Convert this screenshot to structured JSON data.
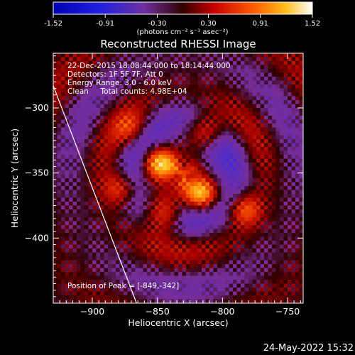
{
  "chart_data": {
    "type": "heatmap",
    "title": "Reconstructed RHESSI Image",
    "colorbar": {
      "ticks": [
        "-1.52",
        "-0.91",
        "-0.30",
        "0.30",
        "0.91",
        "1.52"
      ],
      "min": -1.52,
      "max": 1.52,
      "units_label": "(photons cm⁻² s⁻¹ asec⁻²)"
    },
    "info_lines": [
      "22-Dec-2015 18:08:44.000 to 18:14:44.000",
      "Detectors: 1F 5F 7F, Att 0",
      "Energy Range: 3.0 - 6.0 keV",
      "Clean     Total counts: 4.98E+04"
    ],
    "peak_label": "Position of Peak = [-849,-342]",
    "xlabel": "Heliocentric X (arcsec)",
    "ylabel": "Heliocentric Y (arcsec)",
    "xlim": [
      -930,
      -738
    ],
    "ylim": [
      -450,
      -258
    ],
    "x_ticks": [
      "-900",
      "-850",
      "-800",
      "-750"
    ],
    "x_tick_values": [
      -900,
      -850,
      -800,
      -750
    ],
    "y_ticks": [
      "-300",
      "-350",
      "-400"
    ],
    "y_tick_values": [
      -300,
      -350,
      -400
    ],
    "peak": {
      "x": -849,
      "y": -342
    },
    "limb_line": {
      "x1": -930,
      "y1": -283,
      "x2": -866,
      "y2": -450
    },
    "sources": [
      {
        "x": -849,
        "y": -342,
        "amp": 1.52,
        "sigma": 9
      },
      {
        "x": -817,
        "y": -366,
        "amp": 1.3,
        "sigma": 9
      },
      {
        "x": -845,
        "y": -382,
        "amp": 1.05,
        "sigma": 11
      },
      {
        "x": -812,
        "y": -318,
        "amp": 0.9,
        "sigma": 10
      },
      {
        "x": -783,
        "y": -378,
        "amp": 0.8,
        "sigma": 9
      },
      {
        "x": -878,
        "y": -362,
        "amp": 0.7,
        "sigma": 9
      },
      {
        "x": -870,
        "y": -316,
        "amp": 0.55,
        "sigma": 9
      }
    ]
  },
  "footer": {
    "date": "24-May-2022 15:32"
  }
}
